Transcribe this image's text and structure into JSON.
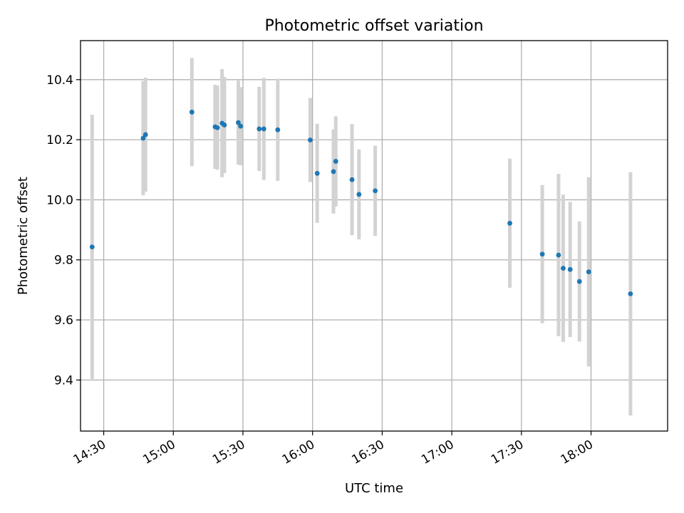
{
  "chart_data": {
    "type": "scatter",
    "title": "Photometric offset variation",
    "xlabel": "UTC time",
    "ylabel": "Photometric offset",
    "x_axis_type": "time",
    "xlim": [
      "14:20",
      "18:33"
    ],
    "ylim": [
      9.23,
      10.53
    ],
    "x_ticks": [
      "14:30",
      "15:00",
      "15:30",
      "16:00",
      "16:30",
      "17:00",
      "17:30",
      "18:00"
    ],
    "y_ticks": [
      9.4,
      9.6,
      9.8,
      10.0,
      10.2,
      10.4
    ],
    "y_tick_labels": [
      "9.4",
      "9.6",
      "9.8",
      "10.0",
      "10.2",
      "10.4"
    ],
    "grid": true,
    "colors": {
      "marker": "#1f77b4",
      "errorbar": "#d3d3d3",
      "grid": "#b0b0b0"
    },
    "series": [
      {
        "points": [
          {
            "x": "14:25",
            "y": 9.843,
            "yerr": 0.44
          },
          {
            "x": "14:47",
            "y": 10.205,
            "yerr": 0.19
          },
          {
            "x": "14:48",
            "y": 10.217,
            "yerr": 0.19
          },
          {
            "x": "15:08",
            "y": 10.292,
            "yerr": 0.18
          },
          {
            "x": "15:18",
            "y": 10.243,
            "yerr": 0.14
          },
          {
            "x": "15:19",
            "y": 10.24,
            "yerr": 0.14
          },
          {
            "x": "15:21",
            "y": 10.255,
            "yerr": 0.18
          },
          {
            "x": "15:22",
            "y": 10.249,
            "yerr": 0.16
          },
          {
            "x": "15:28",
            "y": 10.257,
            "yerr": 0.14
          },
          {
            "x": "15:29",
            "y": 10.245,
            "yerr": 0.13
          },
          {
            "x": "15:37",
            "y": 10.236,
            "yerr": 0.14
          },
          {
            "x": "15:39",
            "y": 10.236,
            "yerr": 0.17
          },
          {
            "x": "15:45",
            "y": 10.233,
            "yerr": 0.17
          },
          {
            "x": "15:59",
            "y": 10.199,
            "yerr": 0.14
          },
          {
            "x": "16:02",
            "y": 10.088,
            "yerr": 0.165
          },
          {
            "x": "16:09",
            "y": 10.094,
            "yerr": 0.14
          },
          {
            "x": "16:10",
            "y": 10.128,
            "yerr": 0.15
          },
          {
            "x": "16:17",
            "y": 10.067,
            "yerr": 0.185
          },
          {
            "x": "16:20",
            "y": 10.018,
            "yerr": 0.15
          },
          {
            "x": "16:27",
            "y": 10.03,
            "yerr": 0.15
          },
          {
            "x": "17:25",
            "y": 9.922,
            "yerr": 0.215
          },
          {
            "x": "17:39",
            "y": 9.819,
            "yerr": 0.23
          },
          {
            "x": "17:46",
            "y": 9.816,
            "yerr": 0.27
          },
          {
            "x": "17:48",
            "y": 9.772,
            "yerr": 0.245
          },
          {
            "x": "17:51",
            "y": 9.768,
            "yerr": 0.225
          },
          {
            "x": "17:55",
            "y": 9.728,
            "yerr": 0.2
          },
          {
            "x": "17:59",
            "y": 9.76,
            "yerr": 0.315
          },
          {
            "x": "18:17",
            "y": 9.687,
            "yerr": 0.405
          }
        ]
      }
    ]
  }
}
